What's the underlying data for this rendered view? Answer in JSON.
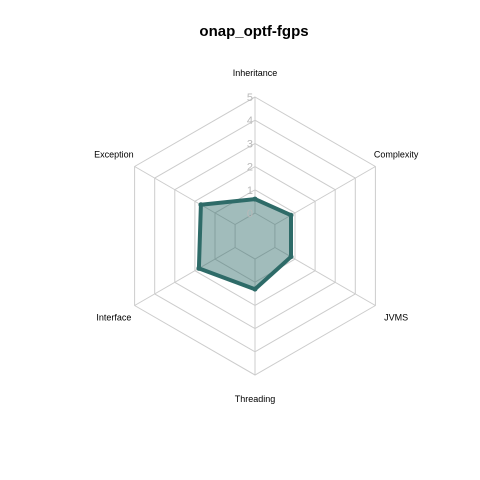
{
  "chart_data": {
    "type": "radar",
    "title": "onap_optf-fgps",
    "axes": [
      "Inheritance",
      "Complexity",
      "JVMS",
      "Threading",
      "Interface",
      "Exception"
    ],
    "ticks": [
      "0",
      "1",
      "2",
      "3",
      "4",
      "5"
    ],
    "range": [
      0,
      5
    ],
    "series": [
      {
        "values": [
          0.6,
          0.8,
          0.8,
          1.3,
          1.8,
          1.7
        ]
      }
    ],
    "grid": "on",
    "colors": {
      "line": "#2e6b68",
      "fill": "#2e6b68",
      "grid": "#cccccc",
      "ticks": "#b9b9b9"
    }
  }
}
